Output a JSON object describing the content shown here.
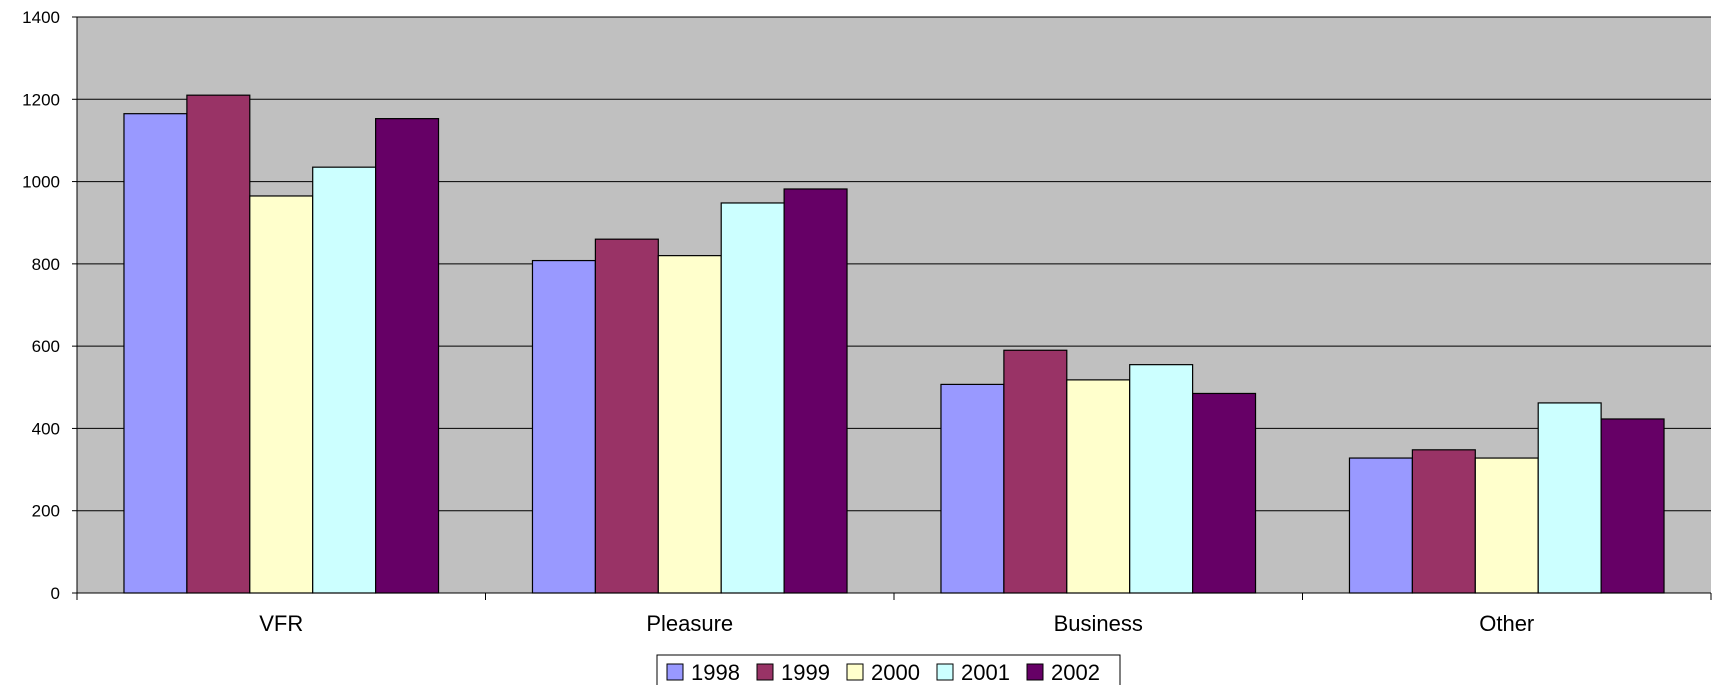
{
  "chart_data": {
    "type": "bar",
    "title": "",
    "xlabel": "",
    "ylabel": "",
    "categories": [
      "VFR",
      "Pleasure",
      "Business",
      "Other"
    ],
    "ylim": [
      0,
      1400
    ],
    "yticks": [
      "0",
      "200",
      "400",
      "600",
      "800",
      "1000",
      "1200",
      "1400"
    ],
    "grid": true,
    "legend_position": "bottom-center",
    "plot_background": "#C0C0C0",
    "series": [
      {
        "name": "1998",
        "color": "#9999FF",
        "values": [
          1165,
          808,
          507,
          328
        ]
      },
      {
        "name": "1999",
        "color": "#993366",
        "values": [
          1210,
          860,
          590,
          348
        ]
      },
      {
        "name": "2000",
        "color": "#FFFFCC",
        "values": [
          965,
          820,
          518,
          328
        ]
      },
      {
        "name": "2001",
        "color": "#CCFFFF",
        "values": [
          1035,
          948,
          555,
          462
        ]
      },
      {
        "name": "2002",
        "color": "#660066",
        "values": [
          1153,
          982,
          485,
          423
        ]
      }
    ]
  }
}
